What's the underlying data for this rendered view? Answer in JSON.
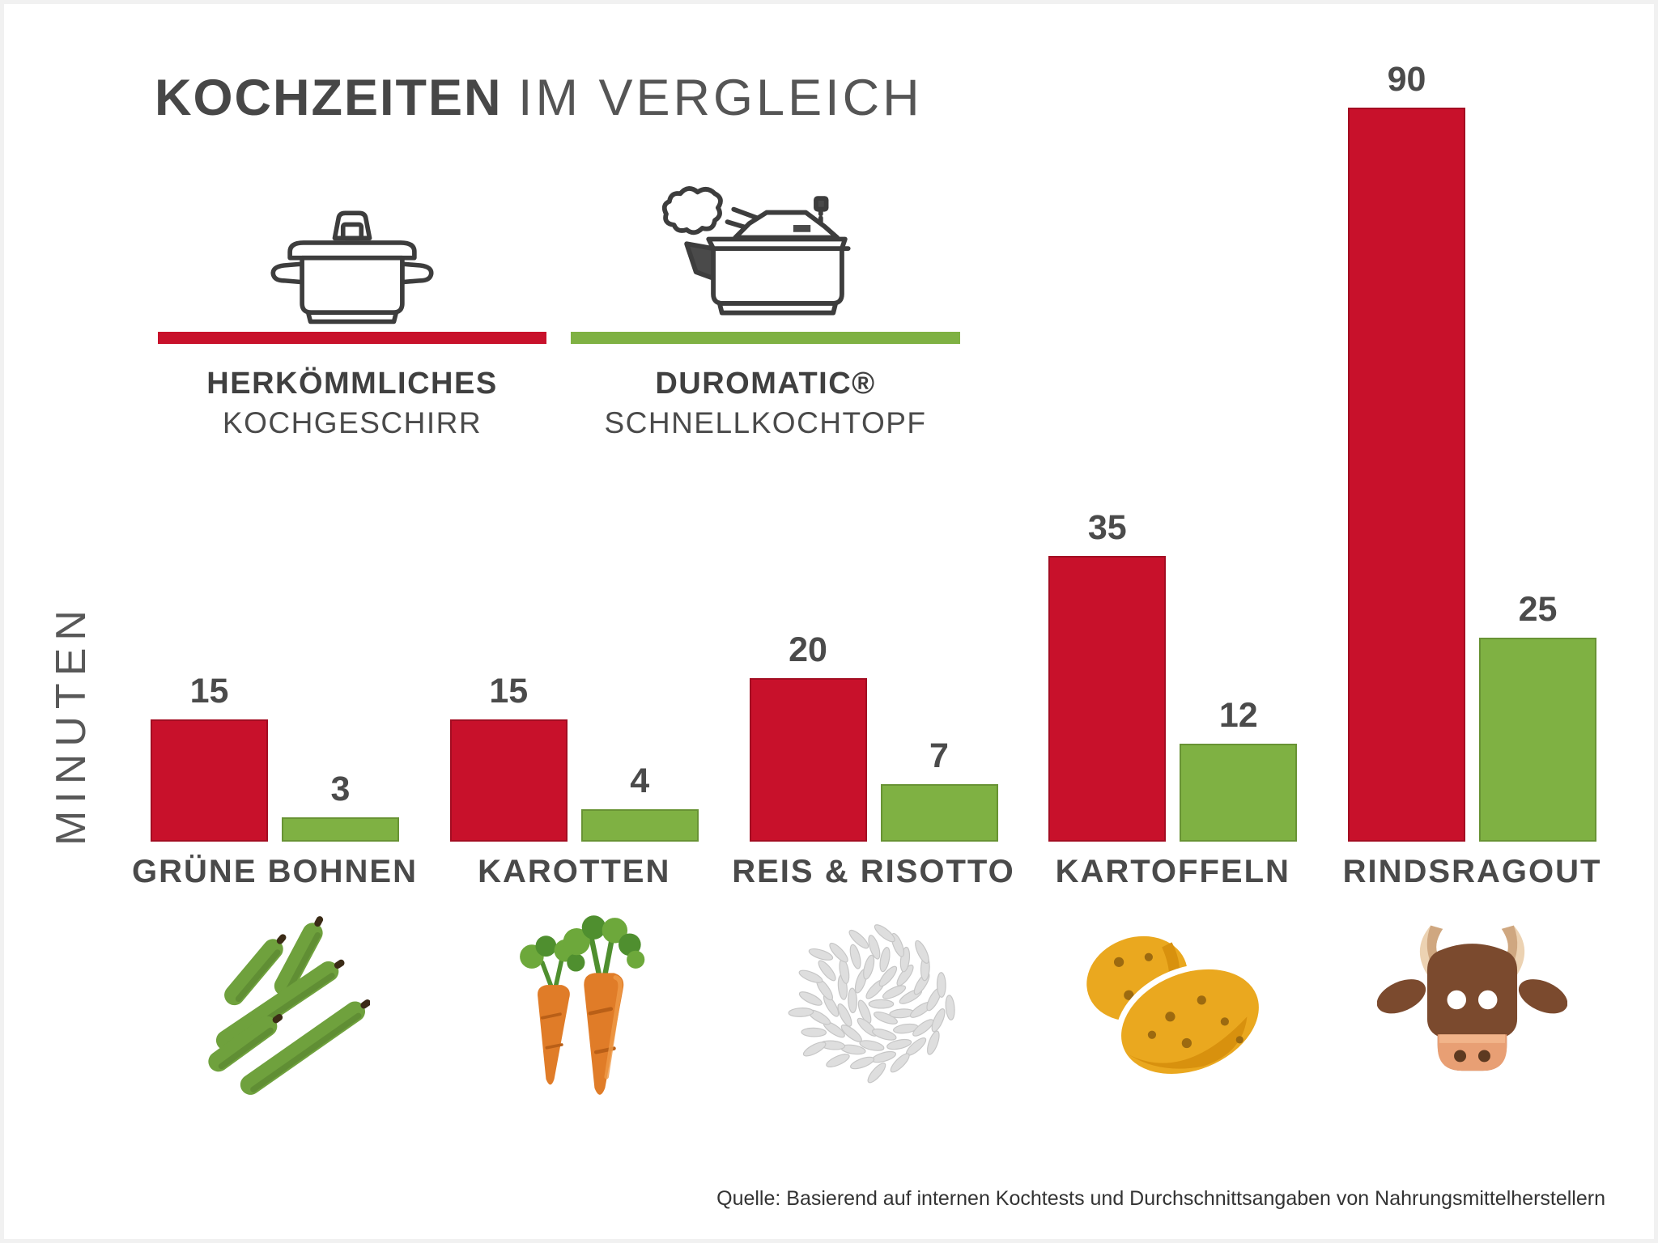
{
  "title": {
    "bold": "KOCHZEITEN",
    "regular": "IM VERGLEICH"
  },
  "legend": [
    {
      "label_bold": "HERKÖMMLICHES",
      "label_regular": "KOCHGESCHIRR",
      "icon": "pot-icon",
      "color": "#c8112b"
    },
    {
      "label_bold": "DUROMATIC®",
      "label_regular": "SCHNELLKOCHTOPF",
      "icon": "pressure-cooker-icon",
      "color": "#7fb143"
    }
  ],
  "ylabel": "MINUTEN",
  "source": "Quelle: Basierend auf internen Kochtests und Durchschnittsangaben von Nahrungsmittelherstellern",
  "colors": {
    "red": "#c8112b",
    "red_border": "#a30d22",
    "green": "#7fb143",
    "green_border": "#689334",
    "text_dark": "#4a4a4a"
  },
  "chart_data": {
    "type": "bar",
    "title": "KOCHZEITEN IM VERGLEICH",
    "ylabel": "MINUTEN",
    "unit": "Minuten",
    "ylim": [
      0,
      90
    ],
    "grid": false,
    "value_labels_shown": true,
    "categories": [
      "GRÜNE BOHNEN",
      "KAROTTEN",
      "REIS & RISOTTO",
      "KARTOFFELN",
      "RINDSRAGOUT"
    ],
    "category_icons": [
      "green-beans-icon",
      "carrots-icon",
      "rice-icon",
      "potatoes-icon",
      "cow-icon"
    ],
    "series": [
      {
        "name": "HERKÖMMLICHES KOCHGESCHIRR",
        "color": "#c8112b",
        "border": "#a30d22",
        "values": [
          15,
          15,
          20,
          35,
          90
        ]
      },
      {
        "name": "DUROMATIC® SCHNELLKOCHTOPF",
        "color": "#7fb143",
        "border": "#689334",
        "values": [
          3,
          4,
          7,
          12,
          25
        ]
      }
    ]
  }
}
